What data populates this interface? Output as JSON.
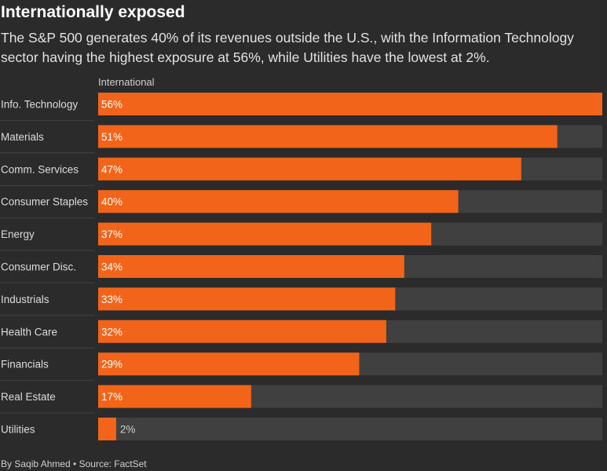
{
  "header": {
    "title": "Internationally exposed",
    "subtitle": "The S&P 500 generates 40% of its revenues outside the U.S., with the Information Technology sector having the highest exposure at 56%, while Utilities have the lowest at 2%."
  },
  "footer": {
    "credit": "By Saqib Ahmed • Source: FactSet"
  },
  "colors": {
    "bar": "#f26419",
    "track": "#404040",
    "background": "#2b2b2b",
    "separator": "#444444",
    "label": "#dcdcdc"
  },
  "chart_data": {
    "type": "bar",
    "orientation": "horizontal",
    "title": "Internationally exposed",
    "legend": [
      "International"
    ],
    "xlim": [
      0,
      56
    ],
    "categories": [
      "Info. Technology",
      "Materials",
      "Comm. Services",
      "Consumer Staples",
      "Energy",
      "Consumer Disc.",
      "Industrials",
      "Health Care",
      "Financials",
      "Real Estate",
      "Utilities"
    ],
    "values": [
      56,
      51,
      47,
      40,
      37,
      34,
      33,
      32,
      29,
      17,
      2
    ],
    "value_labels": [
      "56%",
      "51%",
      "47%",
      "40%",
      "37%",
      "34%",
      "33%",
      "32%",
      "29%",
      "17%",
      "2%"
    ]
  }
}
